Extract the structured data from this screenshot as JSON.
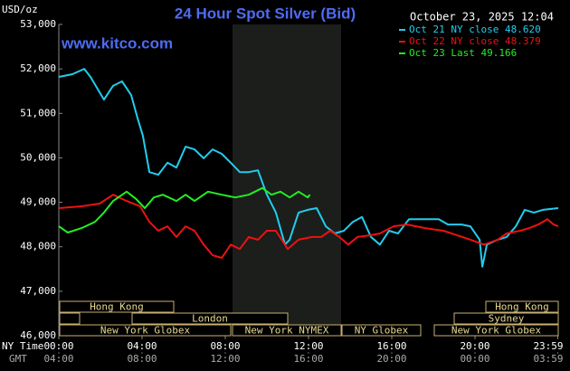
{
  "chart_data": {
    "type": "line",
    "title": "24 Hour Spot Silver (Bid)",
    "subtitle": "October 23, 2025 12:04",
    "watermark": "www.kitco.com",
    "ylabel": "USD/oz",
    "xlabel": "NY Time",
    "x2label": "GMT",
    "xlim": [
      0,
      24
    ],
    "ylim": [
      46,
      53
    ],
    "yticks": [
      {
        "value": 53,
        "label": "53,000"
      },
      {
        "value": 52,
        "label": "52,000"
      },
      {
        "value": 51,
        "label": "51,000"
      },
      {
        "value": 50,
        "label": "50,000"
      },
      {
        "value": 49,
        "label": "49,000"
      },
      {
        "value": 48,
        "label": "48,000"
      },
      {
        "value": 47,
        "label": "47,000"
      },
      {
        "value": 46,
        "label": "46,000"
      }
    ],
    "xticks": [
      {
        "value": 0,
        "label": "00:00"
      },
      {
        "value": 4,
        "label": "04:00"
      },
      {
        "value": 8,
        "label": "08:00"
      },
      {
        "value": 12,
        "label": "12:00"
      },
      {
        "value": 16,
        "label": "16:00"
      },
      {
        "value": 20,
        "label": "20:00"
      },
      {
        "value": 23.98,
        "label": "23:59"
      }
    ],
    "x2ticks": [
      {
        "value": 0,
        "label": "04:00"
      },
      {
        "value": 4,
        "label": "08:00"
      },
      {
        "value": 8,
        "label": "12:00"
      },
      {
        "value": 12,
        "label": "16:00"
      },
      {
        "value": 16,
        "label": "20:00"
      },
      {
        "value": 20,
        "label": "00:00"
      },
      {
        "value": 23.98,
        "label": "03:59"
      }
    ],
    "sessions": [
      {
        "label": "Hong Kong"
      },
      {
        "label": "London"
      },
      {
        "label": "New York Globex"
      },
      {
        "label": "New York NYMEX"
      },
      {
        "label": "NY Globex"
      },
      {
        "label": "Hong Kong"
      },
      {
        "label": "Sydney"
      },
      {
        "label": "New York Globex"
      }
    ],
    "series": [
      {
        "name": "Oct 21 NY close 48.620",
        "color": "#22ccee",
        "x": [
          0,
          0.65,
          1.22,
          1.52,
          2.17,
          2.61,
          3.04,
          3.48,
          3.78,
          4.04,
          4.35,
          4.78,
          5.22,
          5.65,
          6.09,
          6.52,
          6.96,
          7.39,
          7.83,
          8.26,
          8.7,
          9.13,
          9.57,
          10,
          10.43,
          10.87,
          11.09,
          11.52,
          11.96,
          12.39,
          12.83,
          13.26,
          13.7,
          14.13,
          14.57,
          15,
          15.43,
          15.87,
          16.3,
          16.83,
          17.61,
          18.26,
          18.7,
          19.35,
          19.78,
          20.22,
          20.35,
          20.57,
          21.09,
          21.52,
          21.96,
          22.39,
          22.83,
          23.26,
          24
        ],
        "values": [
          51.82,
          51.88,
          52.0,
          51.82,
          51.31,
          51.62,
          51.72,
          51.41,
          50.9,
          50.5,
          49.68,
          49.62,
          49.89,
          49.78,
          50.25,
          50.19,
          49.99,
          50.19,
          50.09,
          49.89,
          49.68,
          49.68,
          49.72,
          49.17,
          48.77,
          48.05,
          48.16,
          48.77,
          48.83,
          48.87,
          48.46,
          48.3,
          48.36,
          48.56,
          48.67,
          48.22,
          48.05,
          48.36,
          48.3,
          48.62,
          48.62,
          48.62,
          48.5,
          48.5,
          48.46,
          48.16,
          47.55,
          48.05,
          48.16,
          48.22,
          48.46,
          48.83,
          48.77,
          48.83,
          48.87
        ]
      },
      {
        "name": "Oct 22 NY close 48.379",
        "color": "#ee1111",
        "x": [
          0,
          1.09,
          1.96,
          2.61,
          3.26,
          3.91,
          4.35,
          4.78,
          5.22,
          5.65,
          6.09,
          6.52,
          6.96,
          7.39,
          7.83,
          8.26,
          8.7,
          9.13,
          9.57,
          10,
          10.43,
          11,
          11.52,
          12.17,
          12.61,
          13.04,
          13.48,
          13.91,
          14.35,
          15,
          15.43,
          16.09,
          16.74,
          17.61,
          18.48,
          19.13,
          19.78,
          20.43,
          21.09,
          21.52,
          22.17,
          22.61,
          23.04,
          23.48,
          23.78,
          24
        ],
        "values": [
          48.87,
          48.91,
          48.97,
          49.17,
          49.03,
          48.91,
          48.56,
          48.36,
          48.46,
          48.22,
          48.46,
          48.36,
          48.05,
          47.81,
          47.75,
          48.05,
          47.95,
          48.22,
          48.16,
          48.36,
          48.36,
          47.95,
          48.16,
          48.22,
          48.22,
          48.36,
          48.22,
          48.05,
          48.22,
          48.26,
          48.3,
          48.46,
          48.5,
          48.42,
          48.36,
          48.26,
          48.16,
          48.05,
          48.16,
          48.3,
          48.36,
          48.42,
          48.5,
          48.62,
          48.5,
          48.46
        ]
      },
      {
        "name": "Oct 23 Last 49.166",
        "color": "#22ee22",
        "x": [
          0,
          0.43,
          1.09,
          1.74,
          2.17,
          2.61,
          3.26,
          3.7,
          4.13,
          4.57,
          5,
          5.65,
          6.09,
          6.52,
          7.17,
          7.83,
          8.48,
          9.13,
          9.78,
          10.22,
          10.65,
          11.09,
          11.52,
          11.96,
          12.07
        ],
        "values": [
          48.46,
          48.32,
          48.42,
          48.56,
          48.77,
          49.03,
          49.24,
          49.08,
          48.87,
          49.11,
          49.17,
          49.03,
          49.17,
          49.03,
          49.24,
          49.17,
          49.11,
          49.17,
          49.32,
          49.17,
          49.24,
          49.11,
          49.24,
          49.11,
          49.17
        ]
      }
    ]
  }
}
